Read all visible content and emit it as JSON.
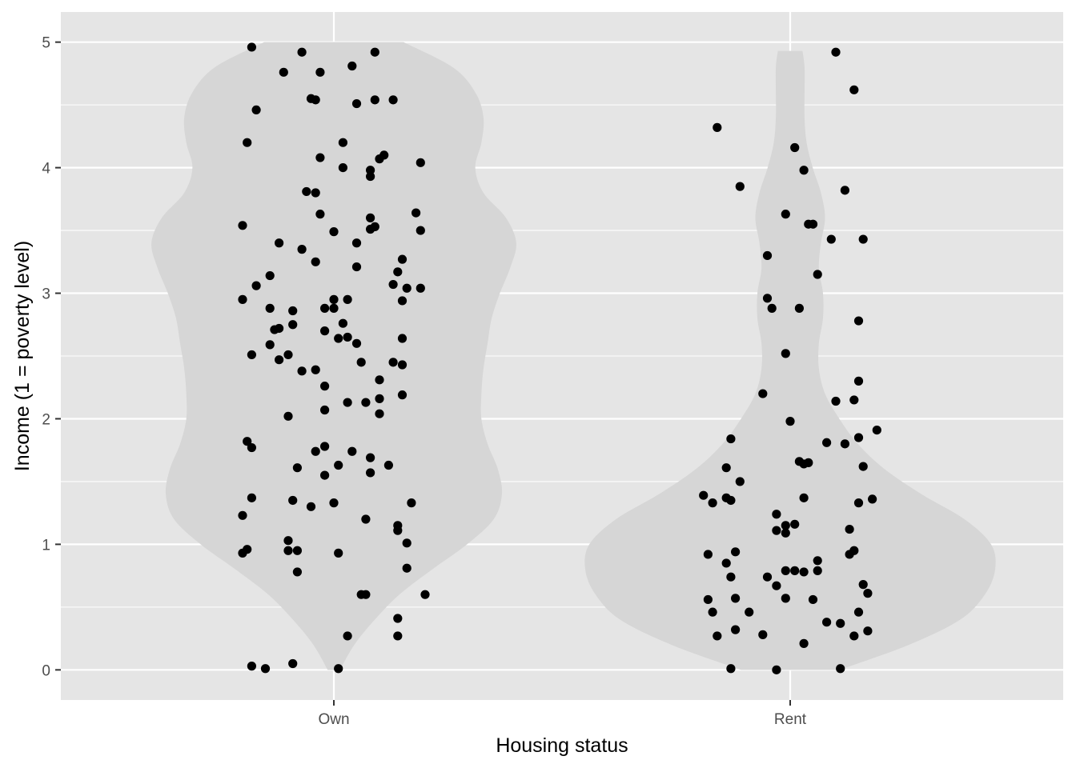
{
  "chart_data": {
    "type": "violin",
    "xlabel": "Housing status",
    "ylabel": "Income (1 = poverty level)",
    "categories": [
      "Own",
      "Rent"
    ],
    "ylim": [
      -0.24,
      5.24
    ],
    "yticks": [
      0,
      1,
      2,
      3,
      4,
      5
    ],
    "grid": true,
    "legend": "none",
    "colors": {
      "panel": "#e5e5e5",
      "grid": "#ffffff",
      "violin_fill": "#d6d6d6",
      "point": "#000000"
    },
    "violins": [
      {
        "category": "Own",
        "y_range": [
          0,
          5
        ],
        "profile": [
          [
            0.0,
            0.03
          ],
          [
            0.2,
            0.1
          ],
          [
            0.4,
            0.2
          ],
          [
            0.6,
            0.32
          ],
          [
            0.8,
            0.48
          ],
          [
            1.0,
            0.65
          ],
          [
            1.2,
            0.78
          ],
          [
            1.4,
            0.82
          ],
          [
            1.6,
            0.8
          ],
          [
            1.8,
            0.75
          ],
          [
            2.0,
            0.72
          ],
          [
            2.2,
            0.72
          ],
          [
            2.4,
            0.73
          ],
          [
            2.6,
            0.75
          ],
          [
            2.8,
            0.77
          ],
          [
            3.0,
            0.81
          ],
          [
            3.2,
            0.86
          ],
          [
            3.4,
            0.89
          ],
          [
            3.6,
            0.84
          ],
          [
            3.8,
            0.73
          ],
          [
            4.0,
            0.69
          ],
          [
            4.2,
            0.72
          ],
          [
            4.4,
            0.73
          ],
          [
            4.6,
            0.69
          ],
          [
            4.8,
            0.58
          ],
          [
            5.0,
            0.34
          ]
        ]
      },
      {
        "category": "Rent",
        "y_range": [
          0,
          4.93
        ],
        "profile": [
          [
            0.0,
            0.24
          ],
          [
            0.2,
            0.58
          ],
          [
            0.4,
            0.83
          ],
          [
            0.6,
            0.95
          ],
          [
            0.8,
            1.0
          ],
          [
            1.0,
            0.98
          ],
          [
            1.2,
            0.85
          ],
          [
            1.4,
            0.64
          ],
          [
            1.6,
            0.46
          ],
          [
            1.8,
            0.33
          ],
          [
            2.0,
            0.24
          ],
          [
            2.2,
            0.17
          ],
          [
            2.4,
            0.14
          ],
          [
            2.6,
            0.14
          ],
          [
            2.8,
            0.16
          ],
          [
            3.0,
            0.16
          ],
          [
            3.2,
            0.14
          ],
          [
            3.4,
            0.15
          ],
          [
            3.6,
            0.17
          ],
          [
            3.8,
            0.15
          ],
          [
            4.0,
            0.11
          ],
          [
            4.2,
            0.08
          ],
          [
            4.4,
            0.07
          ],
          [
            4.6,
            0.07
          ],
          [
            4.8,
            0.07
          ],
          [
            4.93,
            0.06
          ]
        ]
      }
    ],
    "points": [
      {
        "category": "Own",
        "values": [
          [
            -0.18,
            4.96
          ],
          [
            -0.07,
            4.92
          ],
          [
            0.09,
            4.92
          ],
          [
            -0.11,
            4.76
          ],
          [
            0.04,
            4.81
          ],
          [
            -0.03,
            4.76
          ],
          [
            -0.17,
            4.46
          ],
          [
            -0.05,
            4.55
          ],
          [
            -0.04,
            4.54
          ],
          [
            0.05,
            4.51
          ],
          [
            0.09,
            4.54
          ],
          [
            0.13,
            4.54
          ],
          [
            -0.19,
            4.2
          ],
          [
            0.02,
            4.2
          ],
          [
            -0.03,
            4.08
          ],
          [
            0.11,
            4.1
          ],
          [
            0.1,
            4.07
          ],
          [
            0.02,
            4.0
          ],
          [
            0.08,
            3.98
          ],
          [
            0.19,
            4.04
          ],
          [
            -0.06,
            3.81
          ],
          [
            -0.04,
            3.8
          ],
          [
            0.08,
            3.93
          ],
          [
            -0.2,
            3.54
          ],
          [
            -0.03,
            3.63
          ],
          [
            0.08,
            3.6
          ],
          [
            0.09,
            3.53
          ],
          [
            0.08,
            3.51
          ],
          [
            0.18,
            3.64
          ],
          [
            0.19,
            3.5
          ],
          [
            -0.12,
            3.4
          ],
          [
            0.0,
            3.49
          ],
          [
            0.05,
            3.4
          ],
          [
            -0.07,
            3.35
          ],
          [
            0.15,
            3.27
          ],
          [
            -0.04,
            3.25
          ],
          [
            0.05,
            3.21
          ],
          [
            -0.14,
            3.14
          ],
          [
            -0.17,
            3.06
          ],
          [
            0.14,
            3.17
          ],
          [
            0.13,
            3.07
          ],
          [
            0.16,
            3.04
          ],
          [
            0.19,
            3.04
          ],
          [
            -0.2,
            2.95
          ],
          [
            0.0,
            2.95
          ],
          [
            0.03,
            2.95
          ],
          [
            0.15,
            2.94
          ],
          [
            -0.14,
            2.88
          ],
          [
            -0.09,
            2.86
          ],
          [
            -0.02,
            2.88
          ],
          [
            0.0,
            2.88
          ],
          [
            -0.12,
            2.72
          ],
          [
            -0.13,
            2.71
          ],
          [
            -0.09,
            2.75
          ],
          [
            -0.02,
            2.7
          ],
          [
            0.02,
            2.76
          ],
          [
            -0.14,
            2.59
          ],
          [
            0.01,
            2.64
          ],
          [
            0.03,
            2.65
          ],
          [
            0.05,
            2.6
          ],
          [
            0.15,
            2.64
          ],
          [
            -0.18,
            2.51
          ],
          [
            -0.12,
            2.47
          ],
          [
            -0.1,
            2.51
          ],
          [
            0.06,
            2.45
          ],
          [
            0.13,
            2.45
          ],
          [
            0.15,
            2.43
          ],
          [
            -0.07,
            2.38
          ],
          [
            -0.04,
            2.39
          ],
          [
            -0.02,
            2.26
          ],
          [
            0.1,
            2.31
          ],
          [
            0.03,
            2.13
          ],
          [
            0.07,
            2.13
          ],
          [
            0.1,
            2.16
          ],
          [
            0.15,
            2.19
          ],
          [
            -0.1,
            2.02
          ],
          [
            -0.02,
            2.07
          ],
          [
            0.1,
            2.04
          ],
          [
            -0.19,
            1.82
          ],
          [
            -0.18,
            1.77
          ],
          [
            -0.04,
            1.74
          ],
          [
            -0.02,
            1.78
          ],
          [
            0.04,
            1.74
          ],
          [
            0.08,
            1.69
          ],
          [
            -0.08,
            1.61
          ],
          [
            0.01,
            1.63
          ],
          [
            0.12,
            1.63
          ],
          [
            -0.02,
            1.55
          ],
          [
            0.08,
            1.57
          ],
          [
            -0.18,
            1.37
          ],
          [
            -0.09,
            1.35
          ],
          [
            -0.05,
            1.3
          ],
          [
            0.0,
            1.33
          ],
          [
            0.17,
            1.33
          ],
          [
            -0.2,
            1.23
          ],
          [
            0.07,
            1.2
          ],
          [
            0.14,
            1.15
          ],
          [
            0.14,
            1.11
          ],
          [
            -0.19,
            0.96
          ],
          [
            -0.2,
            0.93
          ],
          [
            -0.1,
            1.03
          ],
          [
            -0.1,
            0.95
          ],
          [
            -0.08,
            0.95
          ],
          [
            0.01,
            0.93
          ],
          [
            0.16,
            1.01
          ],
          [
            -0.08,
            0.78
          ],
          [
            0.16,
            0.81
          ],
          [
            0.06,
            0.6
          ],
          [
            0.07,
            0.6
          ],
          [
            0.2,
            0.6
          ],
          [
            0.14,
            0.41
          ],
          [
            0.03,
            0.27
          ],
          [
            0.14,
            0.27
          ],
          [
            -0.18,
            0.03
          ],
          [
            -0.15,
            0.01
          ],
          [
            -0.09,
            0.05
          ],
          [
            0.01,
            0.01
          ]
        ]
      },
      {
        "category": "Rent",
        "values": [
          [
            0.1,
            4.92
          ],
          [
            0.14,
            4.62
          ],
          [
            -0.16,
            4.32
          ],
          [
            0.01,
            4.16
          ],
          [
            0.03,
            3.98
          ],
          [
            -0.11,
            3.85
          ],
          [
            0.12,
            3.82
          ],
          [
            -0.01,
            3.63
          ],
          [
            0.04,
            3.55
          ],
          [
            0.05,
            3.55
          ],
          [
            0.09,
            3.43
          ],
          [
            0.16,
            3.43
          ],
          [
            -0.05,
            3.3
          ],
          [
            0.06,
            3.15
          ],
          [
            -0.05,
            2.96
          ],
          [
            -0.04,
            2.88
          ],
          [
            0.02,
            2.88
          ],
          [
            0.15,
            2.78
          ],
          [
            -0.01,
            2.52
          ],
          [
            0.15,
            2.3
          ],
          [
            -0.06,
            2.2
          ],
          [
            0.1,
            2.14
          ],
          [
            0.14,
            2.15
          ],
          [
            0.0,
            1.98
          ],
          [
            0.19,
            1.91
          ],
          [
            -0.13,
            1.84
          ],
          [
            0.08,
            1.81
          ],
          [
            0.12,
            1.8
          ],
          [
            0.15,
            1.85
          ],
          [
            0.02,
            1.66
          ],
          [
            0.03,
            1.64
          ],
          [
            0.04,
            1.65
          ],
          [
            -0.14,
            1.61
          ],
          [
            0.16,
            1.62
          ],
          [
            -0.11,
            1.5
          ],
          [
            -0.19,
            1.39
          ],
          [
            -0.17,
            1.33
          ],
          [
            -0.14,
            1.37
          ],
          [
            -0.13,
            1.35
          ],
          [
            0.03,
            1.37
          ],
          [
            0.15,
            1.33
          ],
          [
            0.18,
            1.36
          ],
          [
            -0.03,
            1.24
          ],
          [
            -0.03,
            1.11
          ],
          [
            -0.01,
            1.09
          ],
          [
            -0.01,
            1.15
          ],
          [
            0.01,
            1.16
          ],
          [
            0.13,
            1.12
          ],
          [
            -0.18,
            0.92
          ],
          [
            -0.12,
            0.94
          ],
          [
            -0.14,
            0.85
          ],
          [
            -0.01,
            0.79
          ],
          [
            0.01,
            0.79
          ],
          [
            0.03,
            0.78
          ],
          [
            0.06,
            0.87
          ],
          [
            0.06,
            0.79
          ],
          [
            0.13,
            0.92
          ],
          [
            0.14,
            0.95
          ],
          [
            -0.13,
            0.74
          ],
          [
            -0.05,
            0.74
          ],
          [
            -0.03,
            0.67
          ],
          [
            0.16,
            0.68
          ],
          [
            -0.18,
            0.56
          ],
          [
            -0.12,
            0.57
          ],
          [
            -0.01,
            0.57
          ],
          [
            0.05,
            0.56
          ],
          [
            0.17,
            0.61
          ],
          [
            -0.17,
            0.46
          ],
          [
            -0.09,
            0.46
          ],
          [
            0.15,
            0.46
          ],
          [
            -0.12,
            0.32
          ],
          [
            -0.06,
            0.28
          ],
          [
            0.08,
            0.38
          ],
          [
            0.11,
            0.37
          ],
          [
            0.14,
            0.27
          ],
          [
            -0.16,
            0.27
          ],
          [
            0.17,
            0.31
          ],
          [
            0.03,
            0.21
          ],
          [
            -0.13,
            0.01
          ],
          [
            -0.03,
            0.0
          ],
          [
            0.11,
            0.01
          ]
        ]
      }
    ]
  }
}
